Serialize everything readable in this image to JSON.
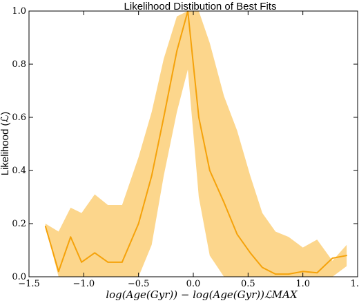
{
  "chart_data": {
    "type": "area",
    "title": "Likelihood Distibution of Best Fits",
    "xlabel": "log(Age(Gyr)) − log(Age(Gyr))ℒMAX",
    "ylabel": "Likelihood (ℒ)",
    "xlim": [
      -1.5,
      1.5
    ],
    "ylim": [
      0.0,
      1.0
    ],
    "x_ticks": [
      "−1.5",
      "−1.0",
      "−0.5",
      "0.0",
      "0.5",
      "1.0",
      "1.5"
    ],
    "y_ticks": [
      "0.0",
      "0.2",
      "0.4",
      "0.6",
      "0.8",
      "1.0"
    ],
    "grid": false,
    "series": [
      {
        "kind": "line",
        "color": "#f5a20a",
        "x": [
          -1.35,
          -1.23,
          -1.12,
          -1.02,
          -0.9,
          -0.78,
          -0.65,
          -0.5,
          -0.38,
          -0.27,
          -0.15,
          -0.05,
          0.05,
          0.15,
          0.28,
          0.4,
          0.52,
          0.63,
          0.75,
          0.87,
          1.0,
          1.13,
          1.27,
          1.4
        ],
        "y": [
          0.19,
          0.02,
          0.15,
          0.055,
          0.09,
          0.055,
          0.055,
          0.2,
          0.38,
          0.6,
          0.85,
          1.0,
          0.6,
          0.4,
          0.28,
          0.16,
          0.09,
          0.035,
          0.01,
          0.01,
          0.02,
          0.015,
          0.07,
          0.08
        ]
      },
      {
        "kind": "band",
        "color": "#fbcf78",
        "x": [
          -1.35,
          -1.23,
          -1.12,
          -1.02,
          -0.9,
          -0.78,
          -0.65,
          -0.5,
          -0.38,
          -0.27,
          -0.15,
          -0.05,
          0.05,
          0.15,
          0.28,
          0.4,
          0.52,
          0.63,
          0.75,
          0.87,
          1.0,
          1.13,
          1.27,
          1.4
        ],
        "upper": [
          0.2,
          0.17,
          0.26,
          0.24,
          0.31,
          0.27,
          0.27,
          0.45,
          0.62,
          0.82,
          0.98,
          1.0,
          1.0,
          0.88,
          0.68,
          0.55,
          0.38,
          0.24,
          0.17,
          0.15,
          0.11,
          0.14,
          0.06,
          0.12
        ],
        "lower": [
          0.19,
          0.0,
          0.0,
          0.0,
          0.0,
          0.0,
          0.0,
          0.0,
          0.12,
          0.38,
          0.62,
          0.78,
          0.3,
          0.08,
          0.0,
          0.0,
          0.0,
          0.0,
          0.0,
          0.0,
          0.0,
          0.0,
          0.0,
          0.04
        ]
      }
    ]
  }
}
